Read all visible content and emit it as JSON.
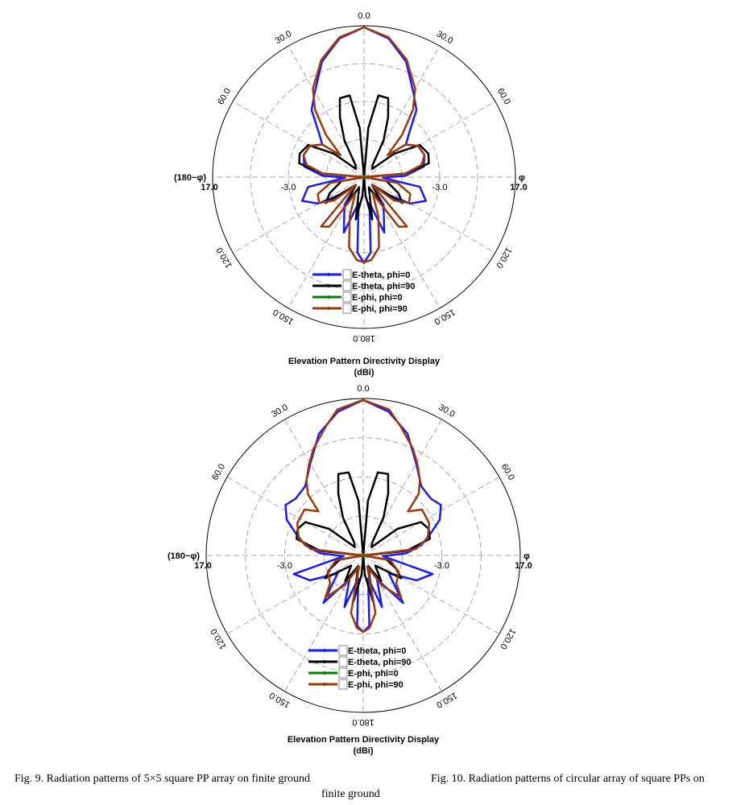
{
  "chart_data": [
    {
      "type": "polar-line",
      "title": "Elevation Pattern Directivity Display",
      "unit_label": "(dBi)",
      "radial_range": [
        -23,
        17
      ],
      "radial_ticks": [
        "17.0",
        "-3.0",
        "-3.0",
        "17.0"
      ],
      "ring_step_db": 10,
      "angle_labels": [
        {
          "angle": 0,
          "text": "0.0"
        },
        {
          "angle": 30,
          "text": "30.0"
        },
        {
          "angle": 60,
          "text": "60.0"
        },
        {
          "angle": 120,
          "text": "120.0"
        },
        {
          "angle": 150,
          "text": "150.0"
        },
        {
          "angle": 180,
          "text": "180.0"
        },
        {
          "angle": 210,
          "text": "150.0"
        },
        {
          "angle": 240,
          "text": "120.0"
        },
        {
          "angle": 300,
          "text": "60.0"
        },
        {
          "angle": 330,
          "text": "30.0"
        }
      ],
      "side_labels": {
        "left": "(180−φ)",
        "right": "φ"
      },
      "legend_placement": "bottom-center",
      "series": [
        {
          "name": "E-theta, phi=0",
          "color": "#1a1aff",
          "symmetric": true,
          "points": [
            [
              0,
              16.6
            ],
            [
              10,
              14.2
            ],
            [
              20,
              9.5
            ],
            [
              30,
              3
            ],
            [
              38,
              -0.5
            ],
            [
              45,
              -6
            ],
            [
              52,
              -9
            ],
            [
              60,
              -6.5
            ],
            [
              70,
              -6
            ],
            [
              80,
              -7
            ],
            [
              88,
              -12
            ],
            [
              92,
              -18
            ],
            [
              100,
              -8
            ],
            [
              111,
              -5.5
            ],
            [
              120,
              -9
            ],
            [
              128,
              -16
            ],
            [
              135,
              -20
            ],
            [
              145,
              -14
            ],
            [
              160,
              -7.4
            ],
            [
              168,
              -16
            ],
            [
              175,
              -3
            ],
            [
              180,
              -0.3
            ]
          ]
        },
        {
          "name": "E-theta, phi=90",
          "color": "#000000",
          "symmetric": true,
          "points": [
            [
              0,
              -23
            ],
            [
              5,
              -10
            ],
            [
              10,
              -1.1
            ],
            [
              17,
              -1.2
            ],
            [
              22,
              -6
            ],
            [
              28,
              -12
            ],
            [
              35,
              -19
            ],
            [
              45,
              -20
            ],
            [
              52,
              -13
            ],
            [
              60,
              -6
            ],
            [
              70,
              -4.9
            ],
            [
              78,
              -5.5
            ],
            [
              85,
              -12
            ],
            [
              90,
              -23
            ],
            [
              100,
              -17
            ],
            [
              115,
              -13
            ],
            [
              124,
              -10.8
            ],
            [
              133,
              -20
            ],
            [
              147,
              -15
            ],
            [
              155,
              -20
            ],
            [
              169,
              -11.6
            ],
            [
              175,
              -18
            ],
            [
              180,
              -23
            ]
          ]
        },
        {
          "name": "E-phi, phi=0",
          "color": "#008000",
          "symmetric": true,
          "points": [
            [
              0,
              -22.7
            ],
            [
              90,
              -22.7
            ],
            [
              180,
              -22.7
            ]
          ]
        },
        {
          "name": "E-phi, phi=90",
          "color": "#9c3a0c",
          "symmetric": true,
          "points": [
            [
              0,
              16.6
            ],
            [
              10,
              14.5
            ],
            [
              20,
              10
            ],
            [
              30,
              4
            ],
            [
              36,
              -1
            ],
            [
              42,
              -8
            ],
            [
              47,
              -14.5
            ],
            [
              52,
              -9
            ],
            [
              60,
              -6.5
            ],
            [
              70,
              -6
            ],
            [
              78,
              -7.5
            ],
            [
              85,
              -12
            ],
            [
              90,
              -23
            ],
            [
              100,
              -14
            ],
            [
              110,
              -10
            ],
            [
              120,
              -9.3
            ],
            [
              128,
              -13
            ],
            [
              133,
              -20
            ],
            [
              139,
              -5.7
            ],
            [
              145,
              -7
            ],
            [
              152,
              -18
            ],
            [
              160,
              -12
            ],
            [
              168,
              -4
            ],
            [
              175,
              -1
            ],
            [
              180,
              -0.5
            ]
          ]
        }
      ]
    },
    {
      "type": "polar-line",
      "title": "Elevation Pattern Directivity Display",
      "unit_label": "(dBi)",
      "radial_range": [
        -23,
        17
      ],
      "radial_ticks": [
        "17.0",
        "-3.0",
        "-3.0",
        "17.0"
      ],
      "ring_step_db": 10,
      "angle_labels": [
        {
          "angle": 0,
          "text": "0.0"
        },
        {
          "angle": 30,
          "text": "30.0"
        },
        {
          "angle": 60,
          "text": "60.0"
        },
        {
          "angle": 120,
          "text": "120.0"
        },
        {
          "angle": 150,
          "text": "150.0"
        },
        {
          "angle": 180,
          "text": "180.0"
        },
        {
          "angle": 210,
          "text": "150.0"
        },
        {
          "angle": 240,
          "text": "120.0"
        },
        {
          "angle": 300,
          "text": "60.0"
        },
        {
          "angle": 330,
          "text": "30.0"
        }
      ],
      "side_labels": {
        "left": "(180−φ)",
        "right": "φ"
      },
      "legend_placement": "bottom-center",
      "series": [
        {
          "name": "E-theta, phi=0",
          "color": "#1a1aff",
          "symmetric": true,
          "points": [
            [
              0,
              16.6
            ],
            [
              10,
              14.2
            ],
            [
              20,
              10
            ],
            [
              30,
              4
            ],
            [
              40,
              0
            ],
            [
              50,
              -0.5
            ],
            [
              57,
              0.6
            ],
            [
              65,
              -1.5
            ],
            [
              72,
              -5
            ],
            [
              80,
              -8
            ],
            [
              87,
              -12
            ],
            [
              92,
              -18
            ],
            [
              105,
              -4.7
            ],
            [
              115,
              -8
            ],
            [
              125,
              -15
            ],
            [
              140,
              -7.2
            ],
            [
              150,
              -16
            ],
            [
              160,
              -9
            ],
            [
              168,
              -17
            ],
            [
              175,
              -5
            ],
            [
              180,
              -3.5
            ]
          ]
        },
        {
          "name": "E-theta, phi=90",
          "color": "#000000",
          "symmetric": true,
          "points": [
            [
              0,
              -23
            ],
            [
              5,
              -9
            ],
            [
              10,
              -1.5
            ],
            [
              17,
              -1.3
            ],
            [
              22,
              -6
            ],
            [
              28,
              -12
            ],
            [
              35,
              -19
            ],
            [
              45,
              -20
            ],
            [
              52,
              -12
            ],
            [
              60,
              -6
            ],
            [
              68,
              -5
            ],
            [
              76,
              -5.5
            ],
            [
              84,
              -12
            ],
            [
              90,
              -23
            ],
            [
              100,
              -17
            ],
            [
              112,
              -14
            ],
            [
              121,
              -11.7
            ],
            [
              130,
              -19
            ],
            [
              145,
              -15
            ],
            [
              155,
              -20
            ],
            [
              168,
              -11
            ],
            [
              175,
              -18
            ],
            [
              180,
              -23
            ]
          ]
        },
        {
          "name": "E-phi, phi=0",
          "color": "#008000",
          "symmetric": true,
          "points": [
            [
              0,
              -22.7
            ],
            [
              90,
              -22.7
            ],
            [
              180,
              -22.7
            ]
          ]
        },
        {
          "name": "E-phi, phi=90",
          "color": "#9c3a0c",
          "symmetric": true,
          "points": [
            [
              0,
              16.6
            ],
            [
              10,
              14.8
            ],
            [
              16,
              11.3
            ],
            [
              25,
              7
            ],
            [
              31,
              3.9
            ],
            [
              37,
              1
            ],
            [
              42,
              -1.9
            ],
            [
              45.5,
              -7
            ],
            [
              52,
              -4
            ],
            [
              64,
              -4.3
            ],
            [
              75,
              -6
            ],
            [
              83,
              -9.5
            ],
            [
              90,
              -23
            ],
            [
              100,
              -16
            ],
            [
              115,
              -13
            ],
            [
              130,
              -12
            ],
            [
              138,
              -8.6
            ],
            [
              148,
              -14
            ],
            [
              160,
              -20
            ],
            [
              168,
              -8
            ],
            [
              175,
              -4.5
            ],
            [
              180,
              -3.5
            ]
          ]
        }
      ]
    }
  ],
  "captions": {
    "fig9": "Fig. 9.  Radiation patterns of 5×5 square PP array on finite ground",
    "fig10_line1": "Fig. 10. Radiation patterns of circular array of square PPs on",
    "fig10_line2": "finite ground"
  }
}
